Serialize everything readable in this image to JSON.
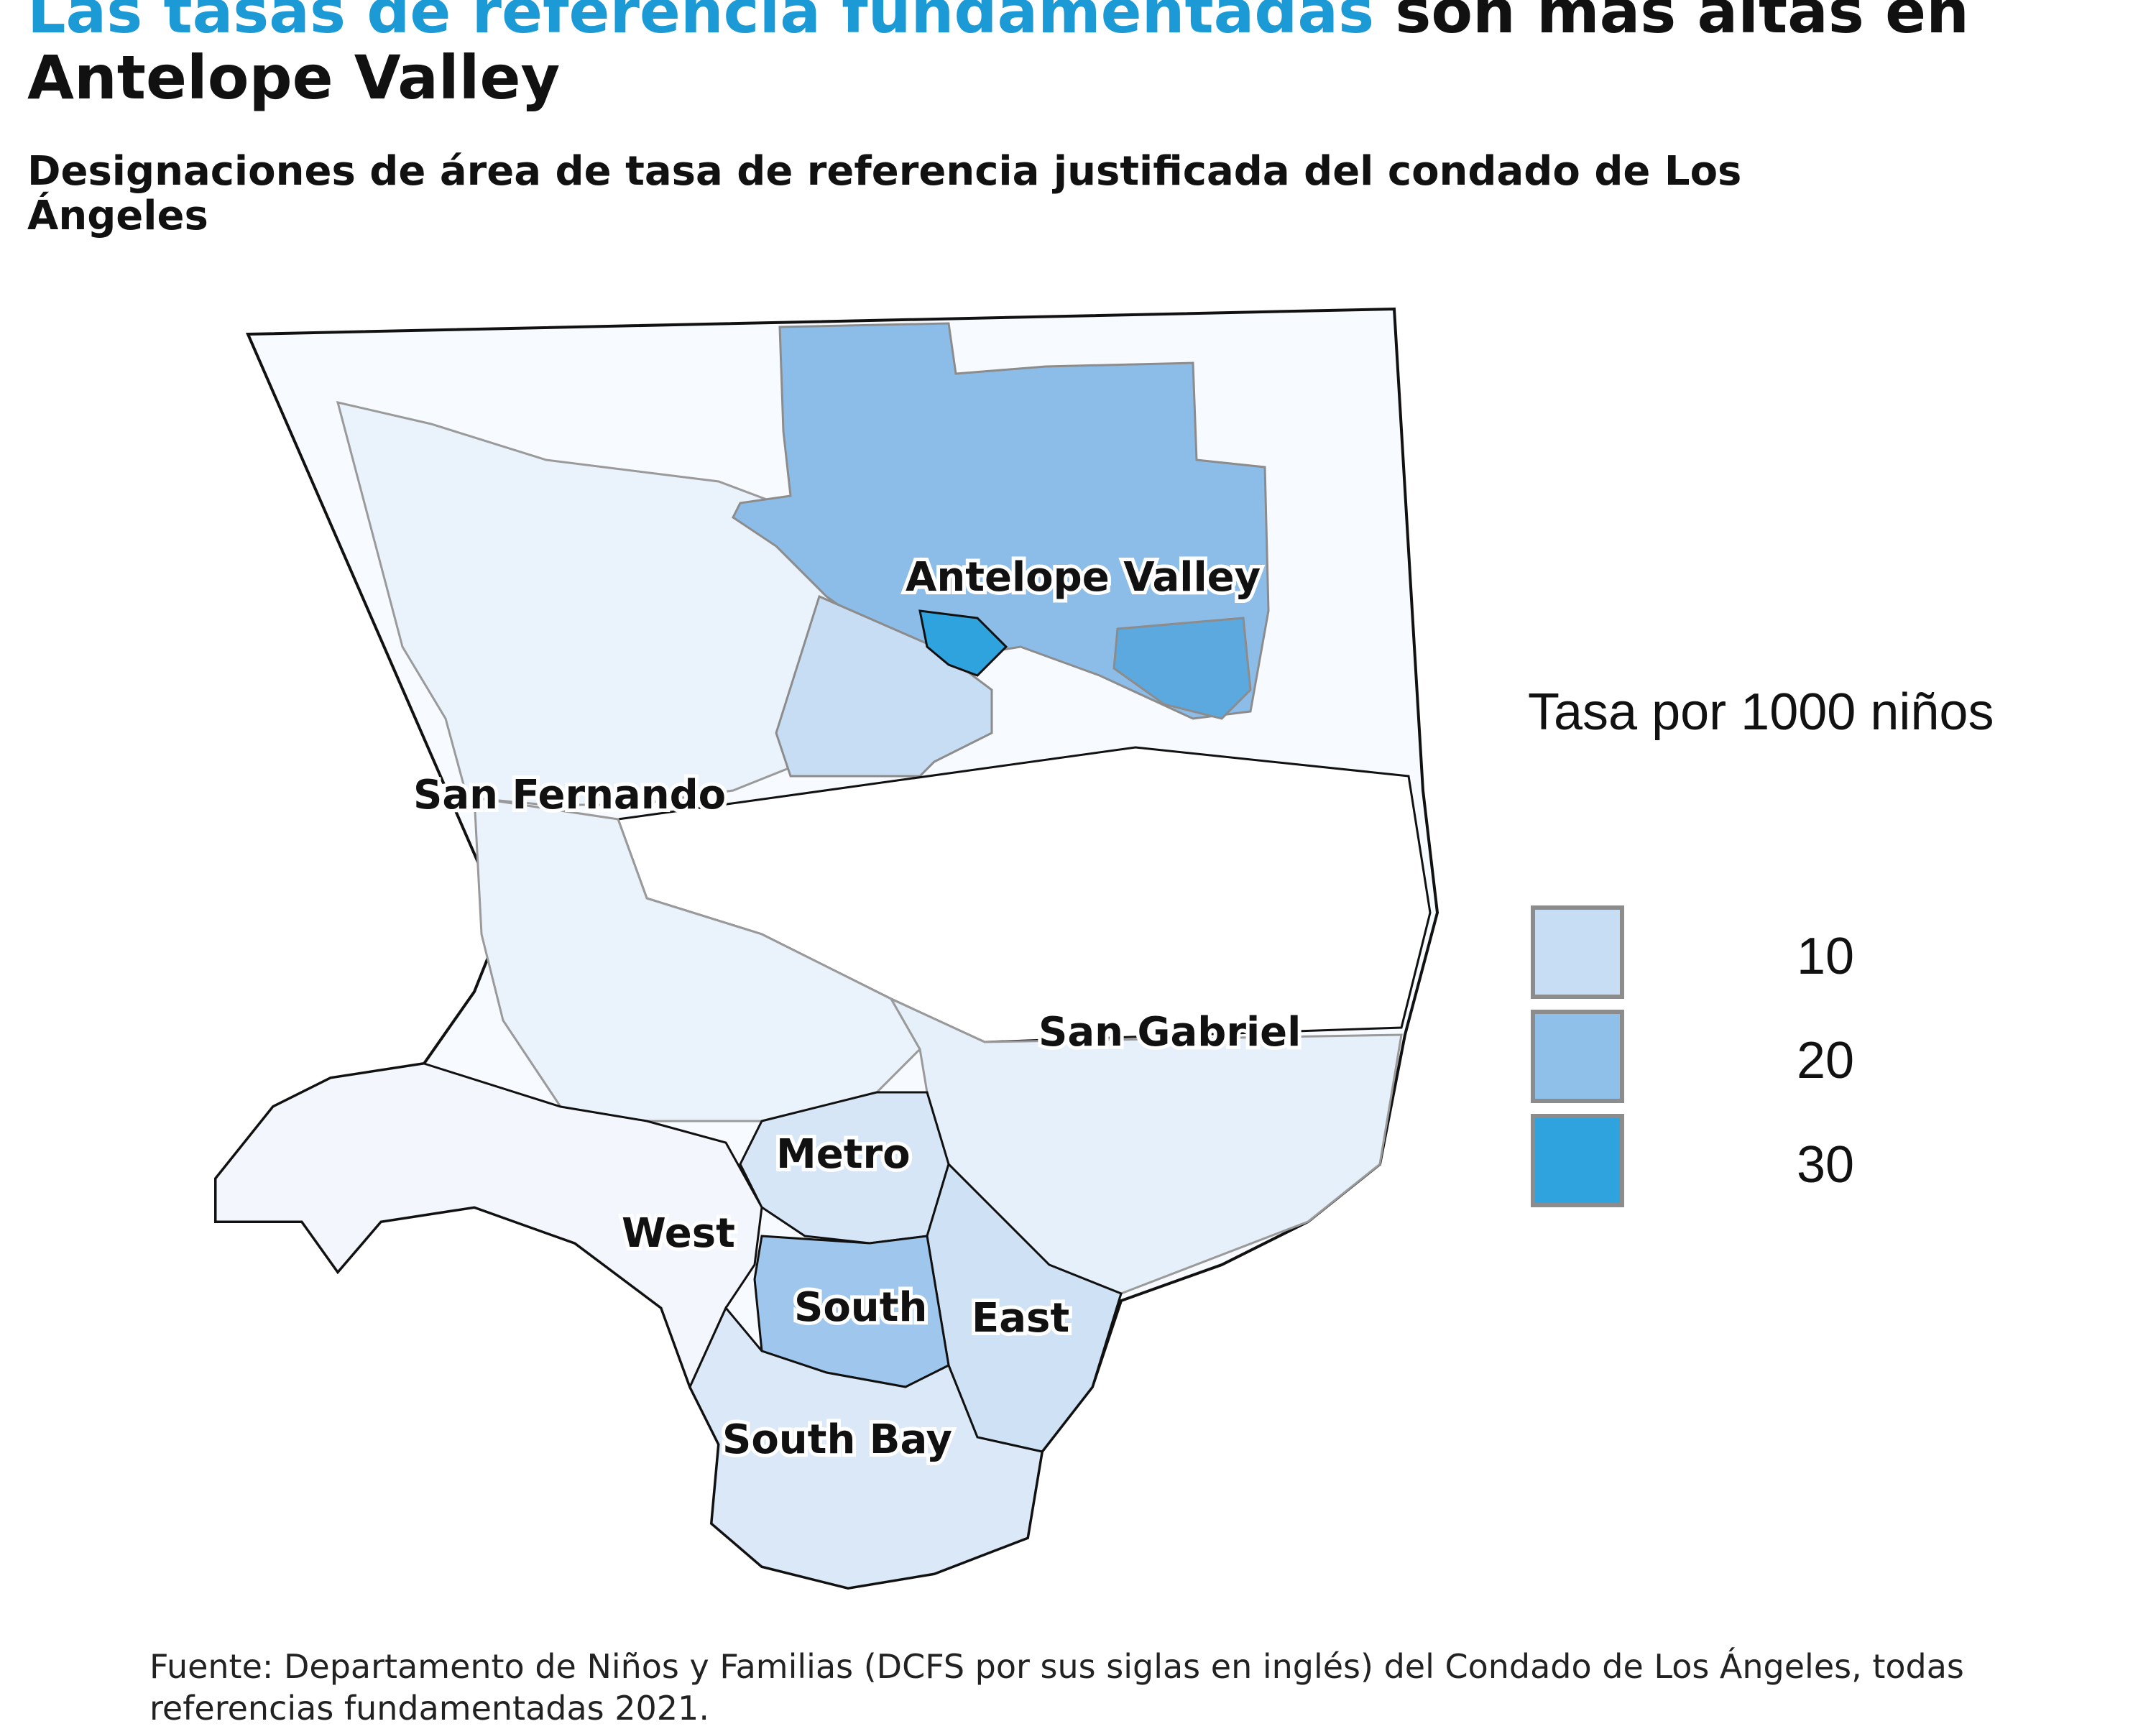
{
  "title": {
    "highlight": "Las tasas de referencia fundamentadas",
    "rest": " son más altas en Antelope Valley"
  },
  "subtitle": "Designaciones de área de tasa de referencia justificada del condado de Los Ángeles",
  "legend": {
    "title": "Tasa por 1000 niños",
    "items": [
      {
        "label": "10",
        "color": "#c7ddf4"
      },
      {
        "label": "20",
        "color": "#8fc0ea"
      },
      {
        "label": "30",
        "color": "#2ea3de"
      }
    ]
  },
  "regions": [
    {
      "name": "Antelope Valley",
      "fill": "#8cbde9"
    },
    {
      "name": "San Fernando",
      "fill": "#eaf2fb"
    },
    {
      "name": "San Gabriel",
      "fill": "#e6f0fb"
    },
    {
      "name": "Metro",
      "fill": "#d6e6f7"
    },
    {
      "name": "West",
      "fill": "#f3f7fd"
    },
    {
      "name": "South",
      "fill": "#9fc6ec"
    },
    {
      "name": "East",
      "fill": "#cfe1f5"
    },
    {
      "name": "South Bay",
      "fill": "#dbe8f7"
    }
  ],
  "source": "Fuente: Departamento de Niños y Familias (DCFS por sus siglas en inglés) del Condado de Los Ángeles, todas referencias fundamentadas 2021."
}
